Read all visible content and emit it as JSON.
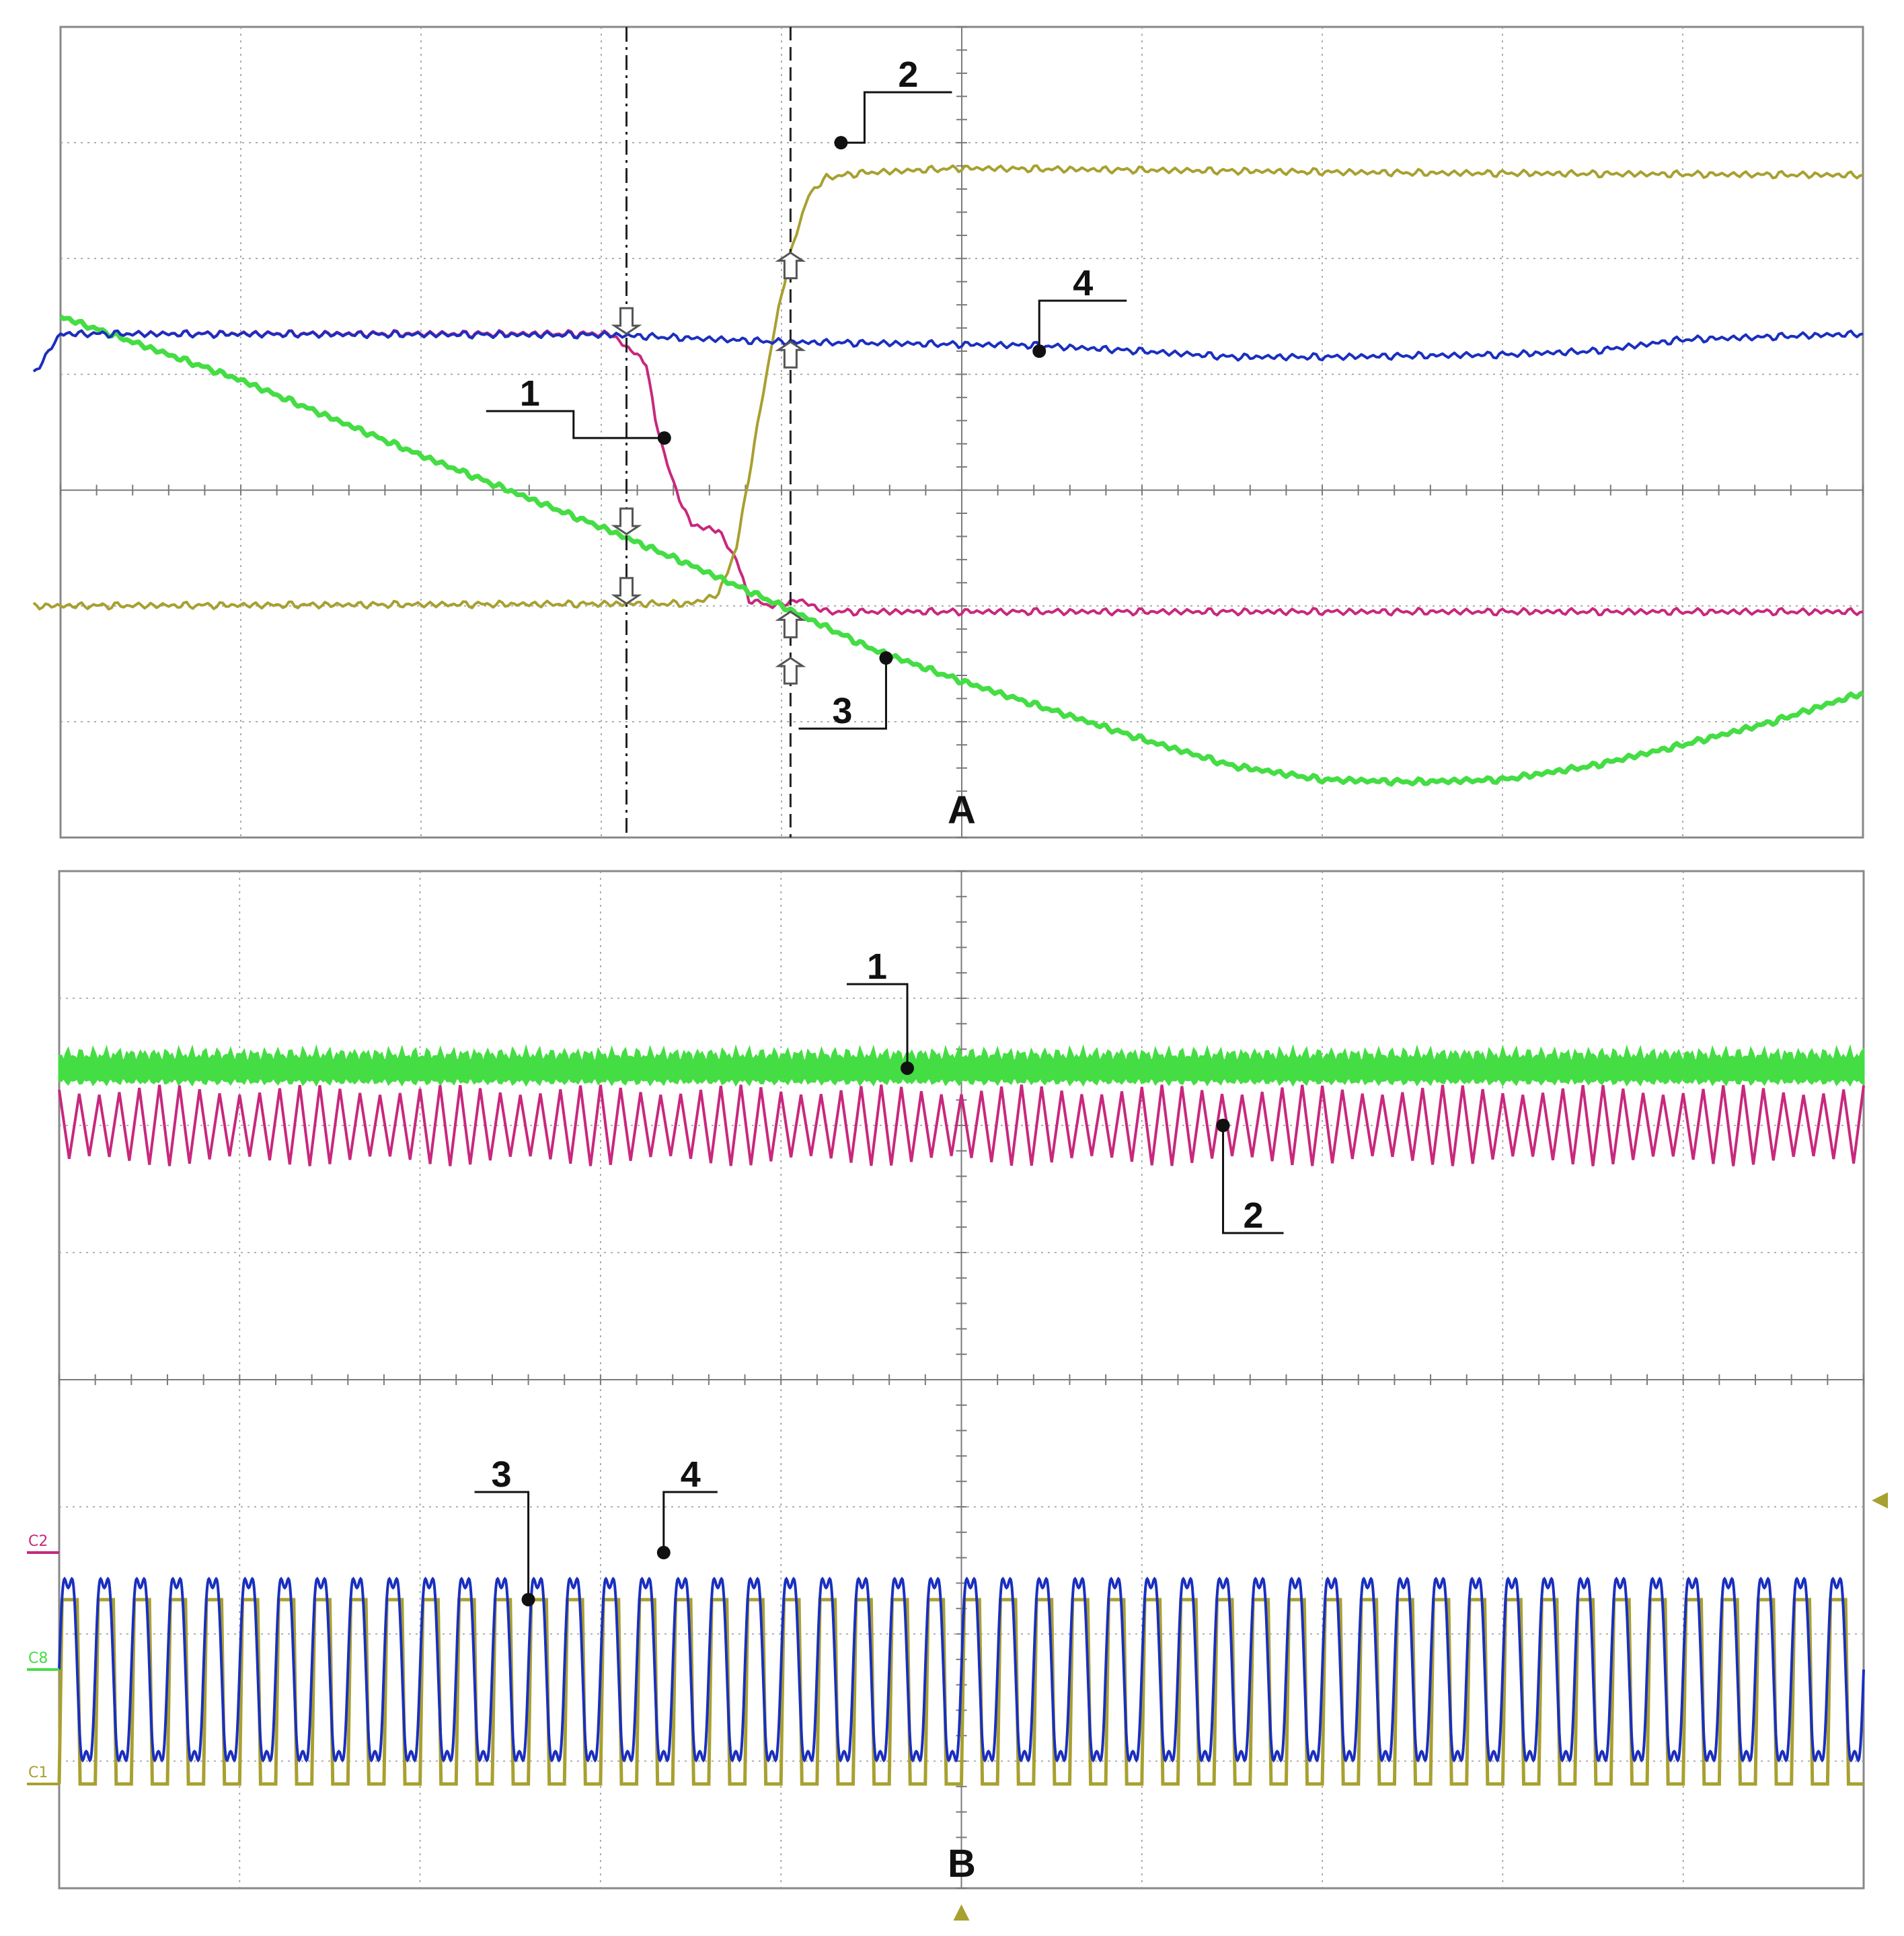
{
  "colors": {
    "ch1_magenta": "#c8287d",
    "ch2_olive": "#a8a030",
    "ch3_green": "#44dd44",
    "ch4_blue": "#1a2fbf",
    "grid": "#999999",
    "frame": "#888888",
    "callout": "#111111"
  },
  "panels": {
    "A": {
      "label": "A"
    },
    "B": {
      "label": "B"
    }
  },
  "chart_data": [
    {
      "type": "line",
      "panel": "A",
      "title": "",
      "xlabel": "",
      "ylabel": "",
      "grid": true,
      "divisions": {
        "x": 10,
        "y": 7
      },
      "xlim": [
        0,
        10
      ],
      "ylim": [
        0,
        7
      ],
      "cursors": [
        {
          "style": "dash-dot",
          "x": 3.14
        },
        {
          "style": "dashed",
          "x": 4.05
        }
      ],
      "callouts": [
        {
          "label": "1",
          "series": "1",
          "x": 3.35,
          "y": 3.45
        },
        {
          "label": "2",
          "series": "2",
          "x": 4.33,
          "y": 6.0
        },
        {
          "label": "3",
          "series": "3",
          "x": 4.58,
          "y": 1.55
        },
        {
          "label": "4",
          "series": "4",
          "x": 5.43,
          "y": 4.2
        }
      ],
      "series": [
        {
          "color": "#c8287d",
          "points": [
            [
              0,
              4.35
            ],
            [
              3.05,
              4.35
            ],
            [
              3.25,
              4.1
            ],
            [
              3.3,
              3.6
            ],
            [
              3.4,
              3.05
            ],
            [
              3.5,
              2.7
            ],
            [
              3.65,
              2.65
            ],
            [
              3.75,
              2.4
            ],
            [
              3.82,
              2.05
            ],
            [
              3.95,
              2.0
            ],
            [
              4.1,
              2.05
            ],
            [
              4.25,
              1.95
            ],
            [
              10,
              1.95
            ]
          ]
        },
        {
          "color": "#a8a030",
          "points": [
            [
              -0.15,
              2.0
            ],
            [
              3.5,
              2.02
            ],
            [
              3.65,
              2.1
            ],
            [
              3.75,
              2.5
            ],
            [
              3.85,
              3.4
            ],
            [
              3.95,
              4.3
            ],
            [
              4.05,
              5.05
            ],
            [
              4.15,
              5.55
            ],
            [
              4.25,
              5.7
            ],
            [
              4.45,
              5.74
            ],
            [
              5.0,
              5.78
            ],
            [
              7.5,
              5.74
            ],
            [
              10,
              5.72
            ]
          ]
        },
        {
          "color": "#44dd44",
          "points": [
            [
              0,
              4.5
            ],
            [
              1.0,
              3.95
            ],
            [
              2.0,
              3.3
            ],
            [
              3.0,
              2.68
            ],
            [
              3.5,
              2.35
            ],
            [
              4.0,
              2.0
            ],
            [
              4.5,
              1.63
            ],
            [
              5.0,
              1.35
            ],
            [
              5.5,
              1.1
            ],
            [
              6.0,
              0.85
            ],
            [
              6.5,
              0.62
            ],
            [
              7.0,
              0.5
            ],
            [
              7.5,
              0.48
            ],
            [
              8.0,
              0.5
            ],
            [
              8.5,
              0.62
            ],
            [
              9.0,
              0.8
            ],
            [
              9.5,
              1.0
            ],
            [
              10,
              1.25
            ]
          ]
        },
        {
          "color": "#1a2fbf",
          "points": [
            [
              -0.15,
              4.0
            ],
            [
              0,
              4.35
            ],
            [
              3.05,
              4.34
            ],
            [
              4.0,
              4.28
            ],
            [
              5.4,
              4.25
            ],
            [
              6.0,
              4.2
            ],
            [
              6.5,
              4.15
            ],
            [
              7.0,
              4.15
            ],
            [
              8.0,
              4.17
            ],
            [
              8.5,
              4.2
            ],
            [
              9.0,
              4.3
            ],
            [
              10,
              4.35
            ]
          ]
        }
      ]
    },
    {
      "type": "line",
      "panel": "B",
      "title": "",
      "xlabel": "",
      "ylabel": "",
      "grid": true,
      "divisions": {
        "x": 10,
        "y": 8
      },
      "xlim": [
        0,
        10
      ],
      "ylim": [
        0,
        8
      ],
      "channel_tags": [
        "C2",
        "C8",
        "C1"
      ],
      "callouts": [
        {
          "label": "1",
          "series": "1",
          "x": 4.7,
          "y": 6.45
        },
        {
          "label": "2",
          "series": "2",
          "x": 6.45,
          "y": 6.0
        },
        {
          "label": "3",
          "series": "3",
          "x": 2.6,
          "y": 2.27
        },
        {
          "label": "4",
          "series": "4",
          "x": 3.35,
          "y": 2.64
        }
      ],
      "series": [
        {
          "name": "",
          "color": "#44dd44",
          "kind": "noisy-band",
          "center": 6.45,
          "half_height": 0.1
        },
        {
          "name": "",
          "color": "#c8287d",
          "kind": "triangle-wave",
          "center": 6.0,
          "amplitude": 0.28,
          "cycles": 90
        },
        {
          "name": "",
          "color": "#a8a030",
          "kind": "square-wave",
          "high": 2.27,
          "low": 0.82,
          "cycles": 50
        },
        {
          "name": "",
          "color": "#1a2fbf",
          "kind": "sine-wave",
          "center": 1.72,
          "amplitude": 0.96,
          "cycles": 50
        }
      ]
    }
  ]
}
